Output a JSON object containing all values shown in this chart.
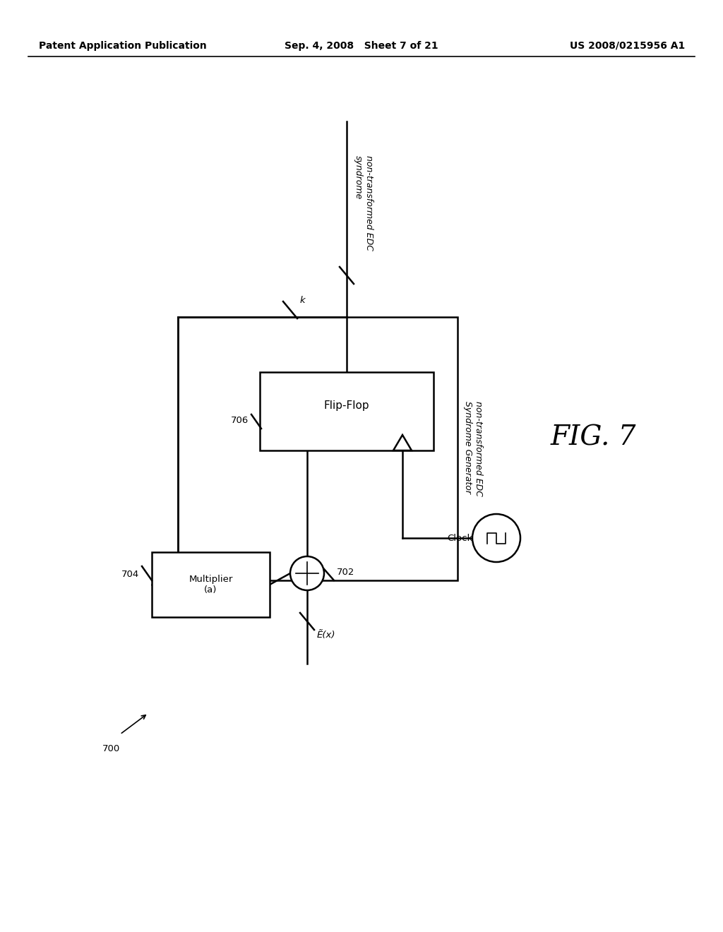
{
  "bg_color": "#ffffff",
  "header_left": "Patent Application Publication",
  "header_mid": "Sep. 4, 2008   Sheet 7 of 21",
  "header_right": "US 2008/0215956 A1",
  "fig_label": "FIG. 7",
  "diagram_label": "700",
  "multiplier_label": "Multiplier\n(a)",
  "multiplier_ref": "704",
  "xor_ref": "702",
  "flipflop_label": "Flip-Flop",
  "flipflop_ref": "706",
  "input_label": "Ẽ(x)",
  "feedback_label": "k",
  "output_label_top": "non-transformed EDC\nsyndrome",
  "right_box_label": "non-transformed EDC\nSyndrome Generator",
  "clock_label": "Clock"
}
